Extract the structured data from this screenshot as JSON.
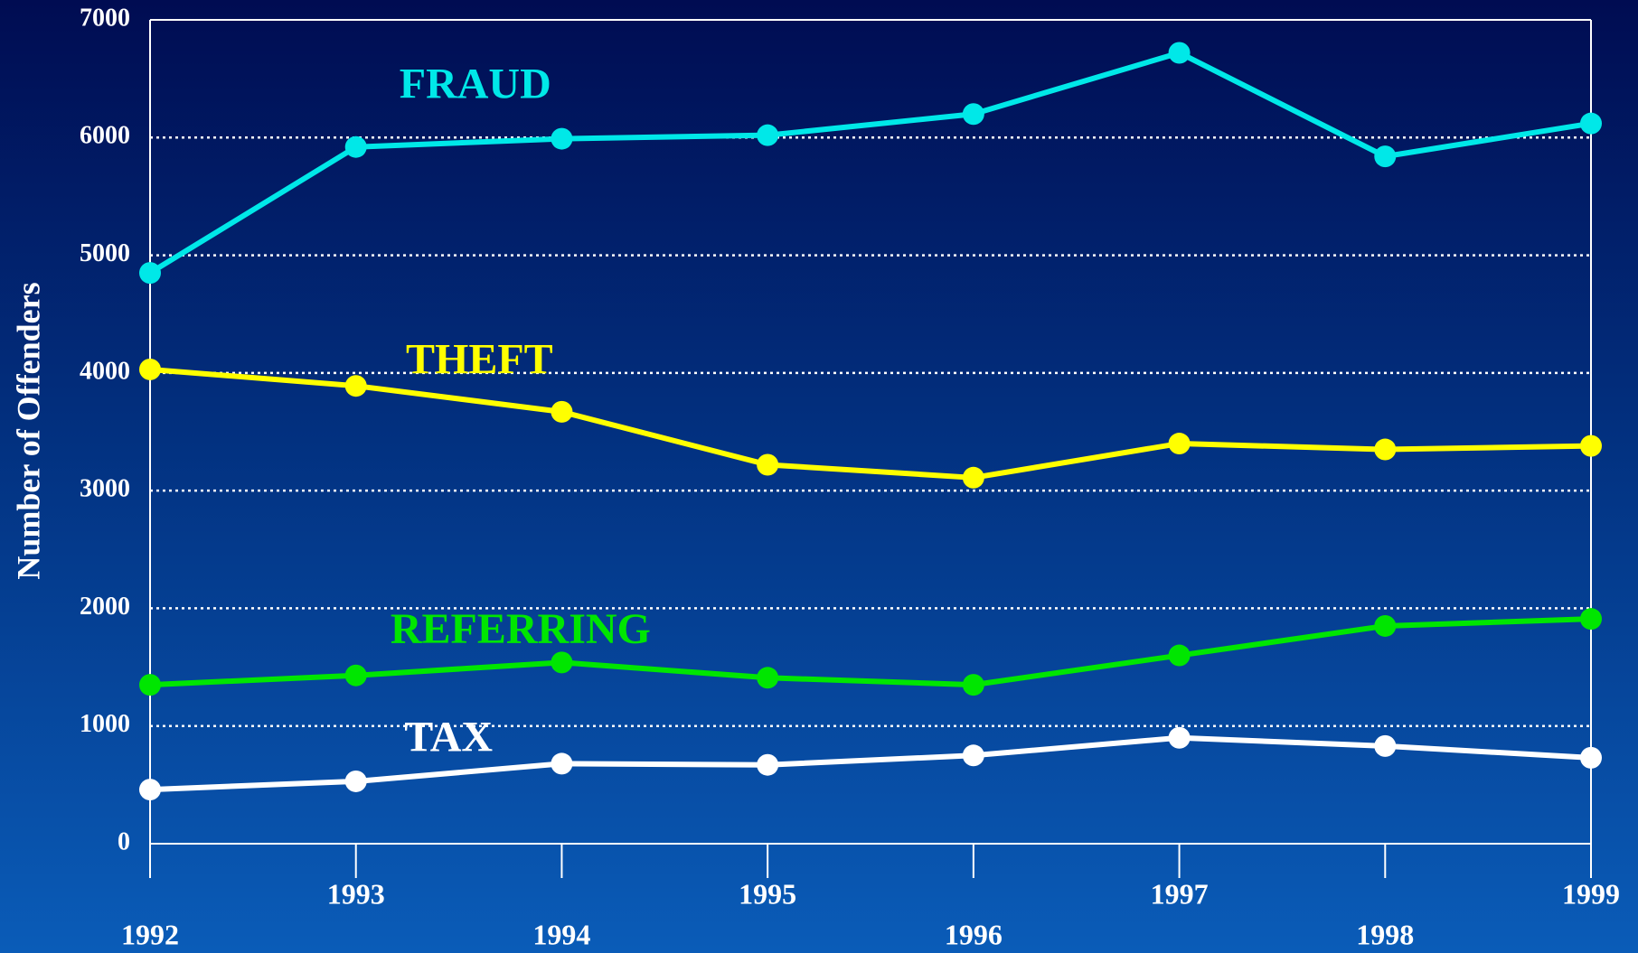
{
  "chart_data": {
    "type": "line",
    "y_label": "Number of Offenders",
    "x": [
      1992,
      1993,
      1994,
      1995,
      1996,
      1997,
      1998,
      1999
    ],
    "xlim": [
      1992,
      1999
    ],
    "xticks": [
      1992,
      1993,
      1994,
      1995,
      1996,
      1997,
      1998,
      1999
    ],
    "ylim": [
      0,
      7000
    ],
    "yticks": [
      0,
      1000,
      2000,
      3000,
      4000,
      5000,
      6000,
      7000
    ],
    "grid": true,
    "series": [
      {
        "name": "FRAUD",
        "color": "#00e8e8",
        "values": [
          4850,
          5920,
          5990,
          6020,
          6200,
          6720,
          5840,
          6120
        ]
      },
      {
        "name": "THEFT",
        "color": "#ffff00",
        "values": [
          4030,
          3890,
          3670,
          3220,
          3110,
          3400,
          3350,
          3380
        ]
      },
      {
        "name": "REFERRING",
        "color": "#00e600",
        "values": [
          1350,
          1430,
          1540,
          1410,
          1350,
          1600,
          1850,
          1910
        ]
      },
      {
        "name": "TAX",
        "color": "#ffffff",
        "values": [
          460,
          530,
          680,
          670,
          750,
          900,
          830,
          730
        ]
      }
    ]
  }
}
